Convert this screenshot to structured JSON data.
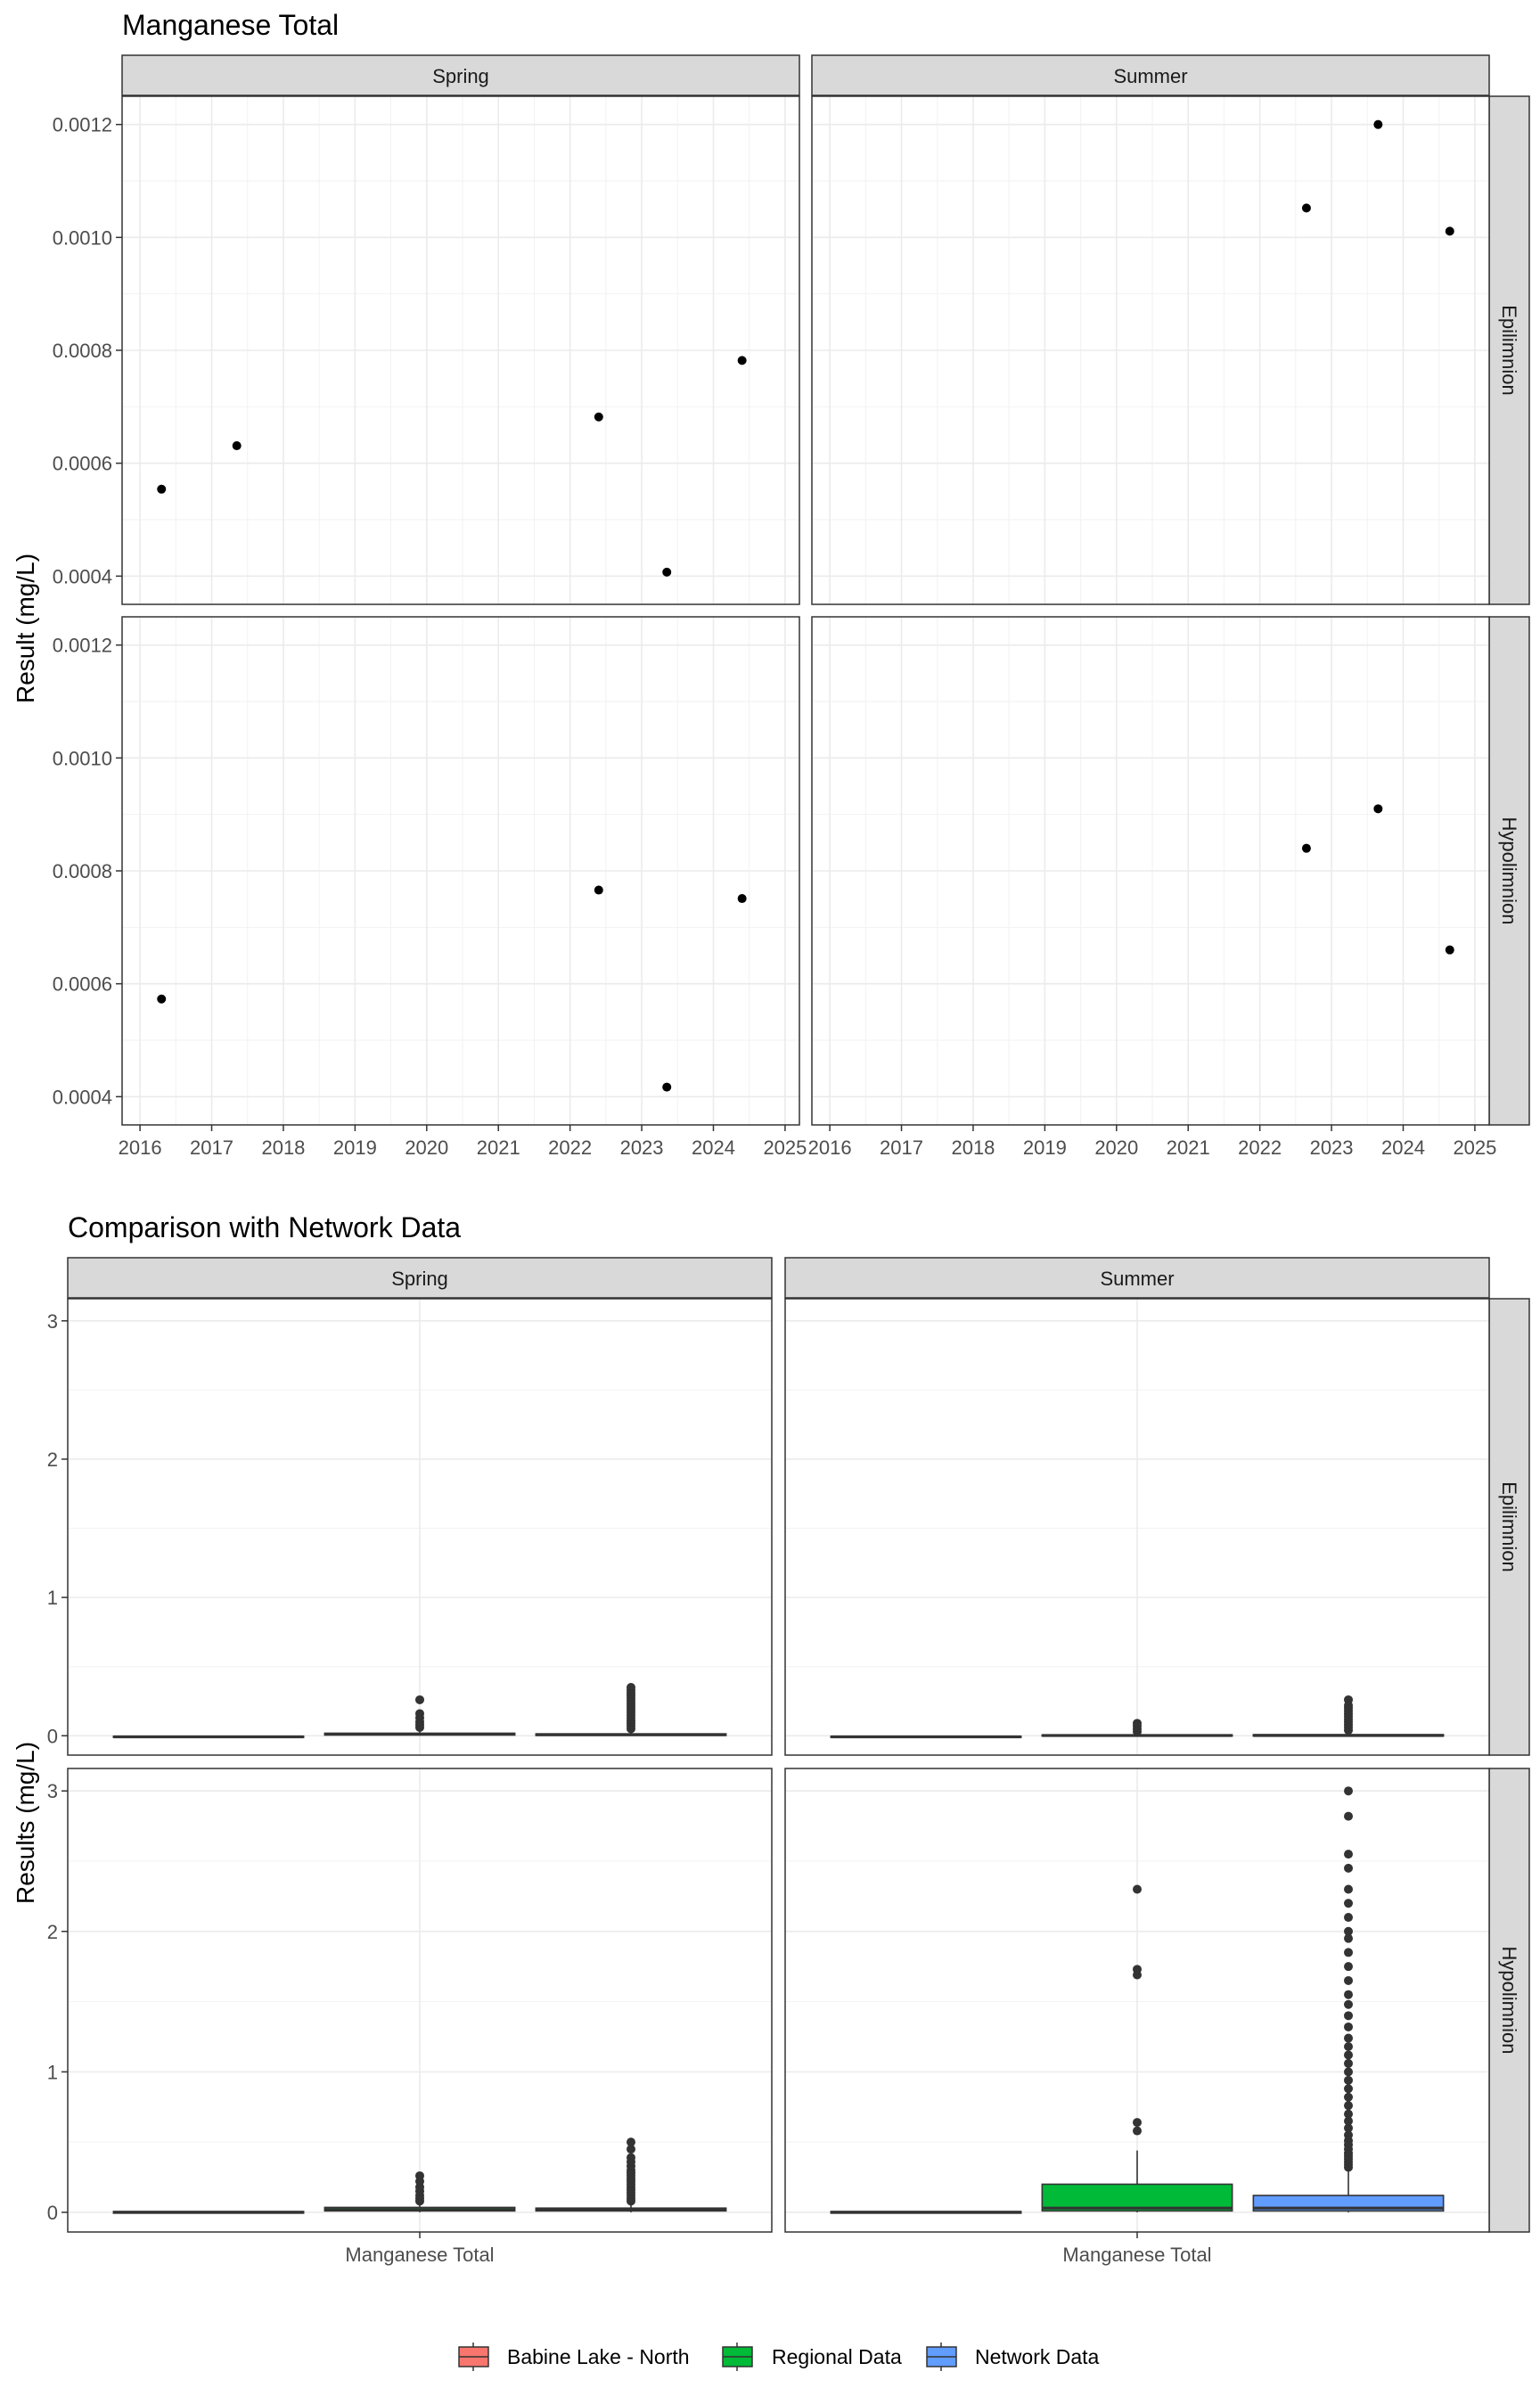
{
  "chart_data": [
    {
      "type": "scatter",
      "title": "Manganese Total",
      "ylabel": "Result (mg/L)",
      "xlabel": "",
      "ylim": [
        0.00035,
        0.00125
      ],
      "yticks": [
        0.0004,
        0.0006,
        0.0008,
        0.001,
        0.0012
      ],
      "ytick_labels": [
        "0.0004",
        "0.0006",
        "0.0008",
        "0.0010",
        "0.0012"
      ],
      "xlim": [
        2015.75,
        2025.2
      ],
      "xticks": [
        2016,
        2017,
        2018,
        2019,
        2020,
        2021,
        2022,
        2023,
        2024,
        2025
      ],
      "xtick_labels": [
        "2016",
        "2017",
        "2018",
        "2019",
        "2020",
        "2021",
        "2022",
        "2023",
        "2024",
        "2025"
      ],
      "facet_cols": [
        "Spring",
        "Summer"
      ],
      "facet_rows": [
        "Epilimnion",
        "Hypolimnion"
      ],
      "grid": true,
      "panels": [
        {
          "col": "Spring",
          "row": "Epilimnion",
          "points": [
            [
              2016.3,
              0.000554
            ],
            [
              2017.35,
              0.000631
            ],
            [
              2022.4,
              0.000682
            ],
            [
              2023.35,
              0.000407
            ],
            [
              2024.4,
              0.000782
            ]
          ]
        },
        {
          "col": "Summer",
          "row": "Epilimnion",
          "points": [
            [
              2022.65,
              0.001052
            ],
            [
              2023.65,
              0.0012
            ],
            [
              2024.65,
              0.001011
            ]
          ]
        },
        {
          "col": "Spring",
          "row": "Hypolimnion",
          "points": [
            [
              2016.3,
              0.000573
            ],
            [
              2022.4,
              0.000766
            ],
            [
              2023.35,
              0.000417
            ],
            [
              2024.4,
              0.000751
            ]
          ]
        },
        {
          "col": "Summer",
          "row": "Hypolimnion",
          "points": [
            [
              2022.65,
              0.00084
            ],
            [
              2023.65,
              0.00091
            ],
            [
              2024.65,
              0.00066
            ]
          ]
        }
      ]
    },
    {
      "type": "box",
      "title": "Comparison with Network Data",
      "ylabel": "Results (mg/L)",
      "xlabel": "",
      "category": "Manganese Total",
      "ylim": [
        -0.14,
        3.16
      ],
      "yticks": [
        0,
        1,
        2,
        3
      ],
      "ytick_labels": [
        "0",
        "1",
        "2",
        "3"
      ],
      "facet_cols": [
        "Spring",
        "Summer"
      ],
      "facet_rows": [
        "Epilimnion",
        "Hypolimnion"
      ],
      "grid": true,
      "legend_position": "bottom",
      "series": [
        {
          "name": "Babine Lake - North",
          "color": "#F8766D"
        },
        {
          "name": "Regional Data",
          "color": "#00BA38"
        },
        {
          "name": "Network Data",
          "color": "#619CFF"
        }
      ],
      "panels": [
        {
          "col": "Spring",
          "row": "Epilimnion",
          "boxes": [
            {
              "q1": -0.012,
              "median": -0.008,
              "q3": -0.004,
              "whisker_low": -0.012,
              "whisker_high": -0.004,
              "outliers": []
            },
            {
              "q1": 0.005,
              "median": 0.012,
              "q3": 0.018,
              "whisker_low": 0.0,
              "whisker_high": 0.035,
              "outliers": [
                0.06,
                0.08,
                0.1,
                0.13,
                0.16,
                0.26
              ]
            },
            {
              "q1": 0.002,
              "median": 0.008,
              "q3": 0.014,
              "whisker_low": 0.0,
              "whisker_high": 0.03,
              "outliers": [
                0.05,
                0.07,
                0.09,
                0.11,
                0.13,
                0.15,
                0.17,
                0.19,
                0.21,
                0.23,
                0.25,
                0.27,
                0.29,
                0.31,
                0.33,
                0.35
              ]
            }
          ]
        },
        {
          "col": "Summer",
          "row": "Epilimnion",
          "boxes": [
            {
              "q1": -0.012,
              "median": -0.008,
              "q3": -0.004,
              "whisker_low": -0.012,
              "whisker_high": -0.004,
              "outliers": []
            },
            {
              "q1": -0.002,
              "median": 0.002,
              "q3": 0.006,
              "whisker_low": -0.004,
              "whisker_high": 0.015,
              "outliers": [
                0.03,
                0.05,
                0.07,
                0.09
              ]
            },
            {
              "q1": -0.002,
              "median": 0.002,
              "q3": 0.008,
              "whisker_low": -0.004,
              "whisker_high": 0.02,
              "outliers": [
                0.04,
                0.06,
                0.08,
                0.1,
                0.12,
                0.14,
                0.16,
                0.18,
                0.2,
                0.22,
                0.26
              ]
            }
          ]
        },
        {
          "col": "Spring",
          "row": "Hypolimnion",
          "boxes": [
            {
              "q1": -0.006,
              "median": 0.0,
              "q3": 0.006,
              "whisker_low": -0.006,
              "whisker_high": 0.006,
              "outliers": []
            },
            {
              "q1": 0.01,
              "median": 0.02,
              "q3": 0.035,
              "whisker_low": 0.0,
              "whisker_high": 0.06,
              "outliers": [
                0.08,
                0.1,
                0.12,
                0.15,
                0.18,
                0.22,
                0.26
              ]
            },
            {
              "q1": 0.01,
              "median": 0.02,
              "q3": 0.03,
              "whisker_low": 0.0,
              "whisker_high": 0.06,
              "outliers": [
                0.08,
                0.1,
                0.12,
                0.14,
                0.16,
                0.18,
                0.2,
                0.22,
                0.24,
                0.26,
                0.28,
                0.3,
                0.33,
                0.36,
                0.39,
                0.45,
                0.5
              ]
            }
          ]
        },
        {
          "col": "Summer",
          "row": "Hypolimnion",
          "boxes": [
            {
              "q1": -0.006,
              "median": 0.0,
              "q3": 0.006,
              "whisker_low": -0.006,
              "whisker_high": 0.006,
              "outliers": []
            },
            {
              "q1": 0.01,
              "median": 0.03,
              "q3": 0.2,
              "whisker_low": 0.0,
              "whisker_high": 0.44,
              "outliers": [
                0.58,
                0.64,
                1.69,
                1.73,
                2.3
              ]
            },
            {
              "q1": 0.01,
              "median": 0.03,
              "q3": 0.12,
              "whisker_low": 0.0,
              "whisker_high": 0.3,
              "outliers": [
                0.32,
                0.34,
                0.36,
                0.38,
                0.4,
                0.42,
                0.45,
                0.48,
                0.51,
                0.55,
                0.6,
                0.65,
                0.7,
                0.76,
                0.82,
                0.88,
                0.94,
                1.0,
                1.06,
                1.12,
                1.18,
                1.24,
                1.32,
                1.4,
                1.48,
                1.55,
                1.65,
                1.75,
                1.85,
                1.95,
                2.0,
                2.1,
                2.2,
                2.3,
                2.45,
                2.55,
                2.82,
                3.0
              ]
            }
          ]
        }
      ]
    }
  ]
}
